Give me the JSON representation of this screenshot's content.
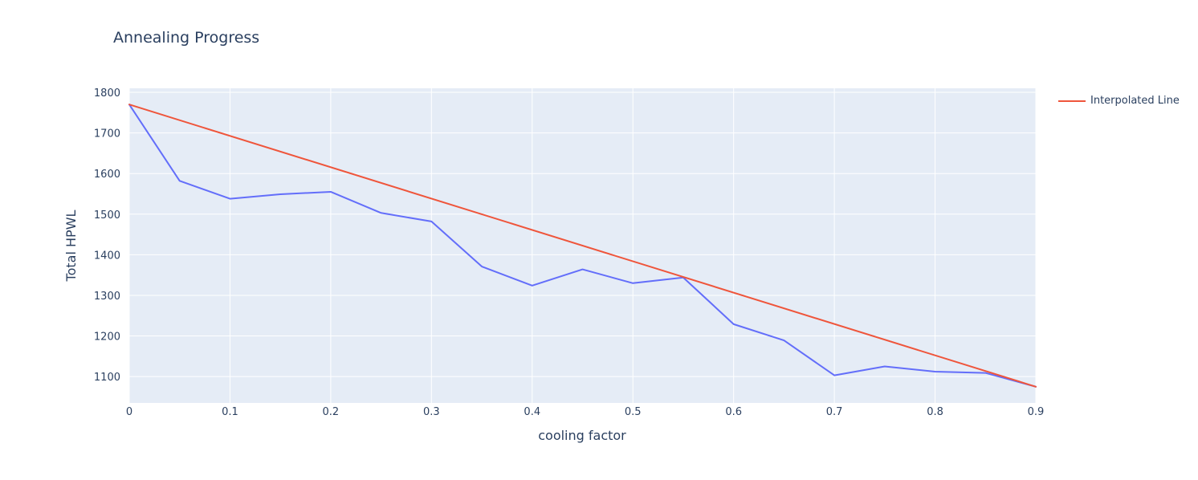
{
  "chart_data": {
    "type": "line",
    "title": "Annealing Progress",
    "xlabel": "cooling factor",
    "ylabel": "Total HPWL",
    "xlim": [
      0,
      0.9
    ],
    "ylim": [
      1035,
      1810
    ],
    "xticks": [
      0,
      0.1,
      0.2,
      0.3,
      0.4,
      0.5,
      0.6,
      0.7,
      0.8,
      0.9
    ],
    "xtick_labels": [
      "0",
      "0.1",
      "0.2",
      "0.3",
      "0.4",
      "0.5",
      "0.6",
      "0.7",
      "0.8",
      "0.9"
    ],
    "yticks": [
      1100,
      1200,
      1300,
      1400,
      1500,
      1600,
      1700,
      1800
    ],
    "ytick_labels": [
      "1100",
      "1200",
      "1300",
      "1400",
      "1500",
      "1600",
      "1700",
      "1800"
    ],
    "grid": true,
    "legend_position": "right",
    "series": [
      {
        "color": "#636efa",
        "show_in_legend": false,
        "x": [
          0,
          0.05,
          0.1,
          0.15,
          0.2,
          0.25,
          0.3,
          0.35,
          0.4,
          0.45,
          0.5,
          0.55,
          0.6,
          0.65,
          0.7,
          0.75,
          0.8,
          0.85,
          0.9
        ],
        "y": [
          1770,
          1582,
          1538,
          1549,
          1555,
          1503,
          1482,
          1371,
          1324,
          1364,
          1330,
          1344,
          1229,
          1189,
          1103,
          1125,
          1112,
          1109,
          1075
        ]
      },
      {
        "name": "Interpolated Line",
        "color": "#ef553b",
        "show_in_legend": true,
        "x": [
          0,
          0.9
        ],
        "y": [
          1770,
          1075
        ]
      }
    ]
  }
}
